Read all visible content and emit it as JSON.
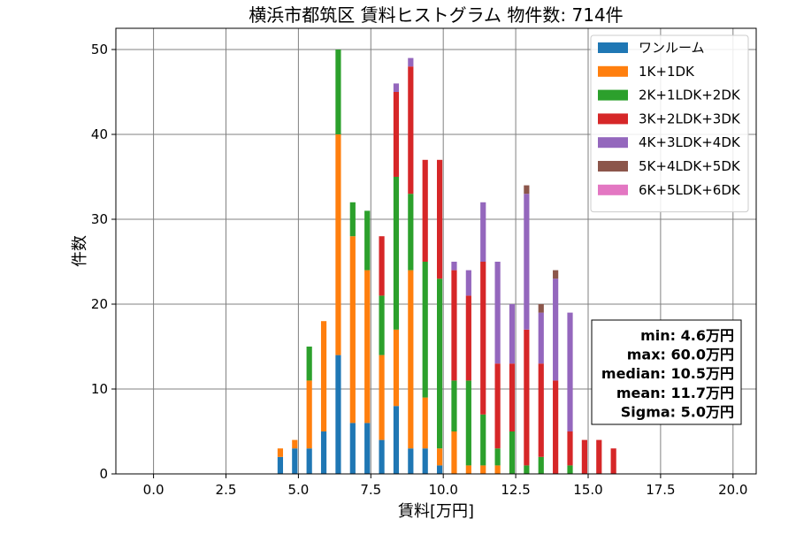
{
  "chart_data": {
    "type": "bar",
    "stacked": true,
    "title": "横浜市都筑区 賃料ヒストグラム 物件数: 714件",
    "xlabel": "賃料[万円]",
    "ylabel": "件数",
    "xlim": [
      -1.3,
      20.8
    ],
    "ylim": [
      0,
      52.5
    ],
    "xticks": [
      0.0,
      2.5,
      5.0,
      7.5,
      10.0,
      12.5,
      15.0,
      17.5,
      20.0
    ],
    "xtick_labels": [
      "0.0",
      "2.5",
      "5.0",
      "7.5",
      "10.0",
      "12.5",
      "15.0",
      "17.5",
      "20.0"
    ],
    "yticks": [
      0,
      10,
      20,
      30,
      40,
      50
    ],
    "ytick_labels": [
      "0",
      "10",
      "20",
      "30",
      "40",
      "50"
    ],
    "bin_width": 0.25,
    "bins": [
      4.5,
      4.75,
      5.0,
      5.25,
      5.5,
      5.75,
      6.0,
      6.25,
      6.5,
      6.75,
      7.0,
      7.25,
      7.5,
      7.75,
      8.0,
      8.25,
      8.5,
      8.75,
      9.0,
      9.25,
      9.5,
      9.75,
      10.0,
      10.25,
      10.5,
      10.75,
      11.0,
      11.25,
      11.5,
      11.75,
      12.0,
      12.25,
      12.5,
      12.75,
      13.0,
      13.25,
      13.5,
      13.75,
      14.0,
      14.25,
      14.5,
      14.75,
      15.0,
      15.25,
      15.5,
      15.75,
      16.0,
      16.25,
      16.5,
      16.75,
      17.0,
      17.25,
      17.5,
      17.75,
      18.0,
      18.25,
      18.5,
      18.75,
      19.0,
      19.25,
      19.5,
      19.75
    ],
    "grid": true,
    "legend_position": "top-right",
    "series": [
      {
        "name": "ワンルーム",
        "color": "#1f77b4",
        "values": [
          2,
          0,
          3,
          0,
          3,
          0,
          5,
          0,
          14,
          0,
          6,
          0,
          6,
          0,
          4,
          0,
          8,
          0,
          3,
          0,
          3,
          0,
          1,
          0,
          0,
          0,
          0,
          0,
          0,
          0,
          0,
          0,
          0,
          0,
          0,
          0,
          0,
          0,
          0,
          0,
          0,
          0,
          0,
          0,
          0,
          0,
          0,
          0,
          0,
          0,
          0,
          0,
          0,
          0,
          0,
          0,
          0,
          0,
          0,
          0,
          0,
          0
        ]
      },
      {
        "name": "1K+1DK",
        "color": "#ff7f0e",
        "values": [
          1,
          0,
          1,
          0,
          8,
          0,
          13,
          0,
          26,
          0,
          22,
          0,
          18,
          0,
          10,
          0,
          9,
          0,
          21,
          0,
          6,
          0,
          2,
          0,
          5,
          0,
          1,
          0,
          1,
          0,
          1,
          0,
          0,
          0,
          0,
          0,
          0,
          0,
          0,
          0,
          0,
          0,
          0,
          0,
          0,
          0,
          0,
          0,
          0,
          0,
          0,
          0,
          0,
          0,
          0,
          0,
          0,
          0,
          0,
          0,
          0,
          0
        ]
      },
      {
        "name": "2K+1LDK+2DK",
        "color": "#2ca02c",
        "values": [
          0,
          0,
          0,
          0,
          4,
          0,
          0,
          0,
          10,
          0,
          4,
          0,
          7,
          0,
          7,
          0,
          18,
          0,
          9,
          0,
          16,
          0,
          20,
          0,
          6,
          0,
          10,
          0,
          6,
          0,
          2,
          0,
          5,
          0,
          1,
          0,
          2,
          0,
          0,
          0,
          1,
          0,
          0,
          0,
          0,
          0,
          0,
          0,
          0,
          0,
          0,
          0,
          0,
          0,
          0,
          0,
          0,
          0,
          0,
          0,
          0,
          0
        ]
      },
      {
        "name": "3K+2LDK+3DK",
        "color": "#d62728",
        "values": [
          0,
          0,
          0,
          0,
          0,
          0,
          0,
          0,
          0,
          0,
          0,
          0,
          0,
          0,
          7,
          0,
          10,
          0,
          15,
          0,
          12,
          0,
          14,
          0,
          13,
          0,
          10,
          0,
          18,
          0,
          10,
          0,
          8,
          0,
          16,
          0,
          11,
          0,
          11,
          0,
          4,
          0,
          4,
          0,
          4,
          0,
          3,
          0,
          0,
          0,
          0,
          0,
          0,
          0,
          0,
          0,
          0,
          0,
          0,
          0,
          0,
          0
        ]
      },
      {
        "name": "4K+3LDK+4DK",
        "color": "#9467bd",
        "values": [
          0,
          0,
          0,
          0,
          0,
          0,
          0,
          0,
          0,
          0,
          0,
          0,
          0,
          0,
          0,
          0,
          1,
          0,
          1,
          0,
          0,
          0,
          0,
          0,
          1,
          0,
          3,
          0,
          7,
          0,
          12,
          0,
          7,
          0,
          16,
          0,
          6,
          0,
          12,
          0,
          14,
          0,
          0,
          0,
          0,
          0,
          0,
          0,
          0,
          0,
          0,
          0,
          0,
          0,
          0,
          0,
          0,
          0,
          0,
          0,
          0,
          0
        ]
      },
      {
        "name": "5K+4LDK+5DK",
        "color": "#8c564b",
        "values": [
          0,
          0,
          0,
          0,
          0,
          0,
          0,
          0,
          0,
          0,
          0,
          0,
          0,
          0,
          0,
          0,
          0,
          0,
          0,
          0,
          0,
          0,
          0,
          0,
          0,
          0,
          0,
          0,
          0,
          0,
          0,
          0,
          0,
          0,
          1,
          0,
          1,
          0,
          1,
          0,
          0,
          0,
          0,
          0,
          0,
          0,
          0,
          0,
          0,
          0,
          0,
          0,
          0,
          0,
          0,
          0,
          0,
          0,
          0,
          0,
          0,
          0
        ]
      },
      {
        "name": "6K+5LDK+6DK",
        "color": "#e377c2",
        "values": [
          0,
          0,
          0,
          0,
          0,
          0,
          0,
          0,
          0,
          0,
          0,
          0,
          0,
          0,
          0,
          0,
          0,
          0,
          0,
          0,
          0,
          0,
          0,
          0,
          0,
          0,
          0,
          0,
          0,
          0,
          0,
          0,
          0,
          0,
          0,
          0,
          0,
          0,
          0,
          0,
          0,
          0,
          0,
          0,
          0,
          0,
          0,
          0,
          0,
          0,
          0,
          0,
          0,
          0,
          0,
          0,
          0,
          0,
          0,
          0,
          0,
          0
        ]
      }
    ],
    "stats": [
      "min: 4.6万円",
      "max: 60.0万円",
      "median: 10.5万円",
      "mean: 11.7万円",
      "Sigma: 5.0万円"
    ]
  }
}
